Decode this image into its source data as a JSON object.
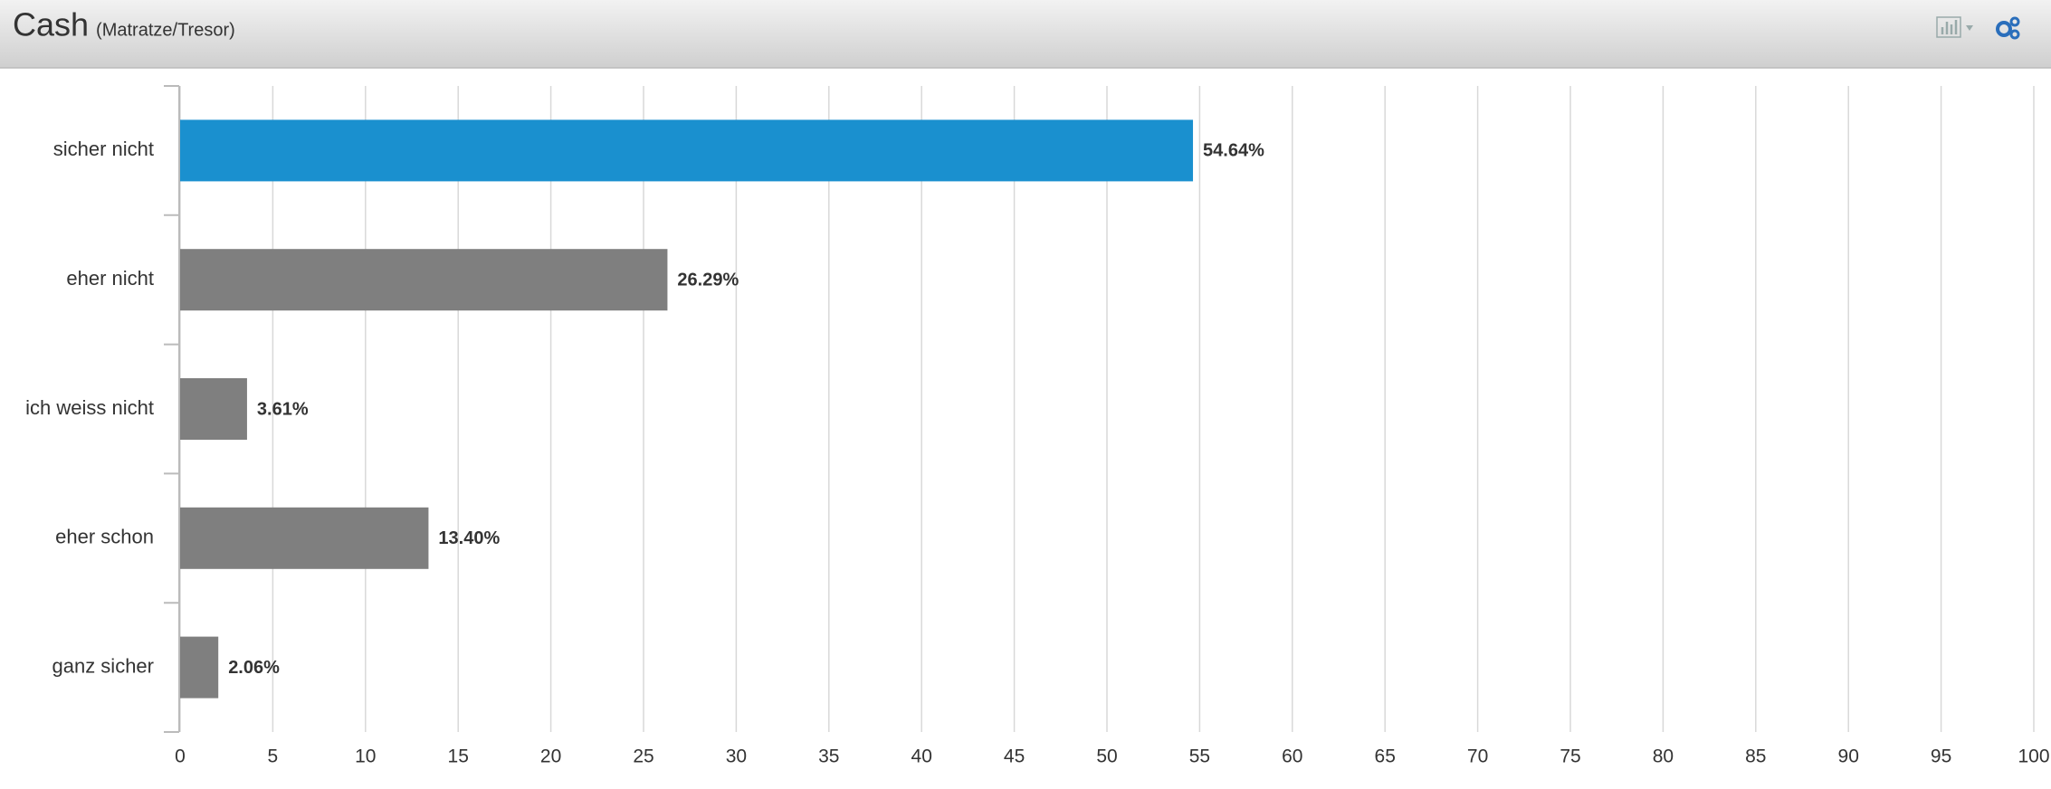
{
  "chart_data": {
    "type": "hbar",
    "title": "Cash",
    "subtitle": "(Matratze/Tresor)",
    "categories": [
      "sicher nicht",
      "eher nicht",
      "ich weiss nicht",
      "eher schon",
      "ganz sicher"
    ],
    "values": [
      54.64,
      26.29,
      3.61,
      13.4,
      2.06
    ],
    "value_labels": [
      "54.64%",
      "26.29%",
      "3.61%",
      "13.40%",
      "2.06%"
    ],
    "colors": [
      "#1a90cf",
      "#7f7f7f",
      "#7f7f7f",
      "#7f7f7f",
      "#7f7f7f"
    ],
    "xlim": [
      0,
      100
    ],
    "xticks": [
      0,
      5,
      10,
      15,
      20,
      25,
      30,
      35,
      40,
      45,
      50,
      55,
      60,
      65,
      70,
      75,
      80,
      85,
      90,
      95,
      100
    ],
    "grid": true
  }
}
